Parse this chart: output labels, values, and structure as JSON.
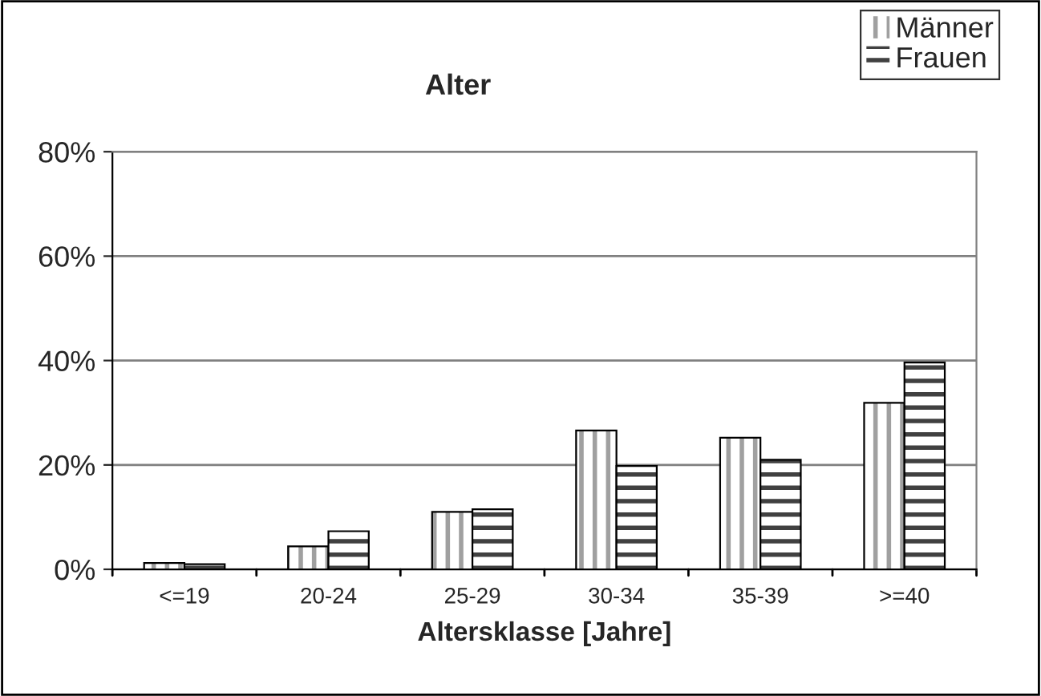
{
  "chart_data": {
    "type": "bar",
    "title": "Alter",
    "xlabel": "Altersklasse [Jahre]",
    "categories": [
      "<=19",
      "20-24",
      "25-29",
      "30-34",
      "35-39",
      ">=40"
    ],
    "series": [
      {
        "name": "Männer",
        "color": "#ffffff",
        "values": [
          1.2,
          4.4,
          11.0,
          26.6,
          25.2,
          31.9
        ]
      },
      {
        "name": "Frauen",
        "color": "#ffffff",
        "values": [
          1.0,
          7.3,
          11.5,
          19.8,
          21.0,
          39.6
        ]
      }
    ],
    "ylim": [
      0,
      80
    ],
    "yticks": [
      {
        "value": 0,
        "label": "0%"
      },
      {
        "value": 20,
        "label": "20%"
      },
      {
        "value": 40,
        "label": "40%"
      },
      {
        "value": 60,
        "label": "60%"
      },
      {
        "value": 80,
        "label": "80%"
      }
    ],
    "grid": "y",
    "legend": "top right"
  }
}
